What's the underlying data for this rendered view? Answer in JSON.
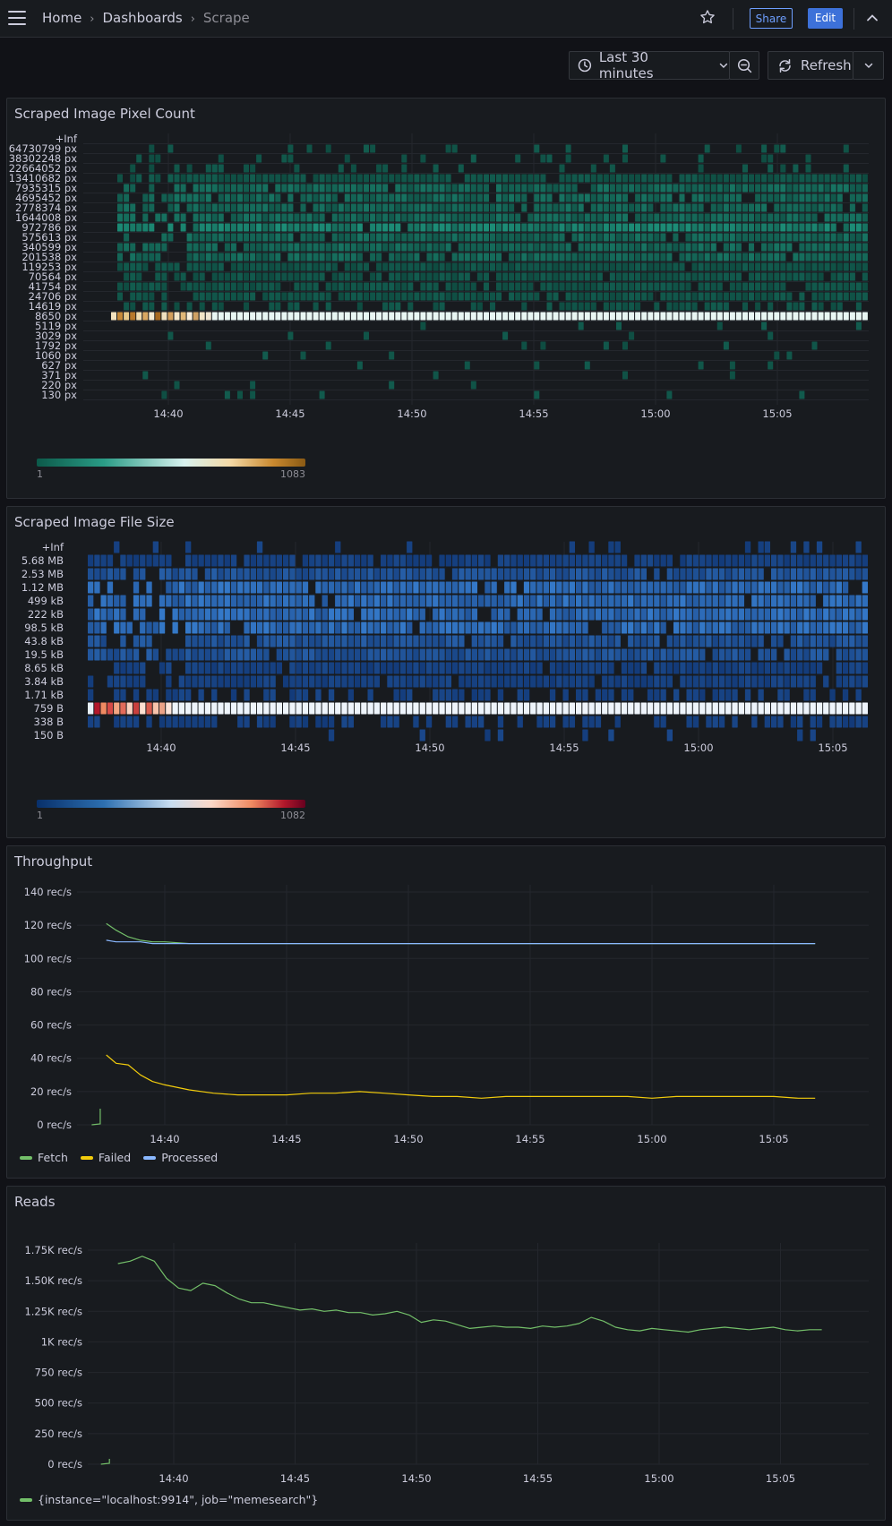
{
  "breadcrumb": {
    "home": "Home",
    "dashboards": "Dashboards",
    "current": "Scrape"
  },
  "header": {
    "share_label": "Share",
    "edit_label": "Edit"
  },
  "toolbar": {
    "time_range": "Last 30 minutes",
    "refresh_label": "Refresh"
  },
  "colors": {
    "accent": "#3d71d9",
    "fetch": "#73bf69",
    "failed": "#f2cc0c",
    "processed": "#8ab8ff"
  },
  "icons": [
    "menu-icon",
    "star-icon",
    "chevron-up-icon",
    "clock-icon",
    "chevron-down-icon",
    "zoom-out-icon",
    "refresh-icon"
  ],
  "time_ticks": [
    "14:40",
    "14:45",
    "14:50",
    "14:55",
    "15:00",
    "15:05"
  ],
  "panels": {
    "pixel_count": {
      "title": "Scraped Image Pixel Count",
      "scale_min": "1",
      "scale_max": "1083"
    },
    "file_size": {
      "title": "Scraped Image File Size",
      "scale_min": "1",
      "scale_max": "1082"
    },
    "throughput": {
      "title": "Throughput",
      "legend": [
        "Fetch",
        "Failed",
        "Processed"
      ]
    },
    "reads": {
      "title": "Reads",
      "legend": [
        "{instance=\"localhost:9914\", job=\"memesearch\"}"
      ]
    }
  },
  "chart_data": [
    {
      "type": "heatmap",
      "title": "Scraped Image Pixel Count",
      "x_ticks": [
        "14:40",
        "14:45",
        "14:50",
        "14:55",
        "15:00",
        "15:05"
      ],
      "y_buckets": [
        "+Inf",
        "64730799 px",
        "38302248 px",
        "22664052 px",
        "13410682 px",
        "7935315 px",
        "4695452 px",
        "2778374 px",
        "1644008 px",
        "972786 px",
        "575613 px",
        "340599 px",
        "201538 px",
        "119253 px",
        "70564 px",
        "41754 px",
        "24706 px",
        "14619 px",
        "8650 px",
        "5119 px",
        "3029 px",
        "1792 px",
        "1060 px",
        "627 px",
        "371 px",
        "220 px",
        "130 px"
      ],
      "color_scale": {
        "min": 1,
        "max": 1083
      },
      "dominant_bucket": "8650 px"
    },
    {
      "type": "heatmap",
      "title": "Scraped Image File Size",
      "x_ticks": [
        "14:40",
        "14:45",
        "14:50",
        "14:55",
        "15:00",
        "15:05"
      ],
      "y_buckets": [
        "+Inf",
        "5.68 MB",
        "2.53 MB",
        "1.12 MB",
        "499 kB",
        "222 kB",
        "98.5 kB",
        "43.8 kB",
        "19.5 kB",
        "8.65 kB",
        "3.84 kB",
        "1.71 kB",
        "759 B",
        "338 B",
        "150 B"
      ],
      "color_scale": {
        "min": 1,
        "max": 1082
      },
      "dominant_bucket": "759 B"
    },
    {
      "type": "line",
      "title": "Throughput",
      "x_ticks": [
        "14:40",
        "14:45",
        "14:50",
        "14:55",
        "15:00",
        "15:05"
      ],
      "y_ticks": [
        "140 rec/s",
        "120 rec/s",
        "100 rec/s",
        "80 rec/s",
        "60 rec/s",
        "40 rec/s",
        "20 rec/s",
        "0 rec/s"
      ],
      "ylim": [
        0,
        140
      ],
      "x_minutes": [
        37.6,
        38.0,
        38.5,
        39.0,
        39.5,
        40.0,
        41.0,
        42.0,
        43.0,
        44.0,
        45.0,
        46.0,
        47.0,
        48.0,
        49.0,
        50.0,
        51.0,
        52.0,
        53.0,
        54.0,
        55.0,
        56.0,
        57.0,
        58.0,
        59.0,
        60.0,
        61.0,
        62.0,
        63.0,
        64.0,
        65.0,
        66.0,
        66.7
      ],
      "series": [
        {
          "name": "Fetch",
          "values": [
            121,
            117,
            113,
            111,
            110,
            110,
            109,
            109,
            109,
            109,
            109,
            109,
            109,
            109,
            109,
            109,
            109,
            109,
            109,
            109,
            109,
            109,
            109,
            109,
            109,
            109,
            109,
            109,
            109,
            109,
            109,
            109,
            109
          ]
        },
        {
          "name": "Failed",
          "values": [
            42,
            37,
            36,
            30,
            26,
            24,
            21,
            19,
            18,
            18,
            18,
            19,
            19,
            20,
            19,
            18,
            17,
            17,
            16,
            17,
            17,
            17,
            17,
            17,
            17,
            16,
            17,
            17,
            17,
            17,
            17,
            16,
            16
          ]
        },
        {
          "name": "Processed",
          "values": [
            111,
            110,
            110,
            110,
            109,
            109,
            109,
            109,
            109,
            109,
            109,
            109,
            109,
            109,
            109,
            109,
            109,
            109,
            109,
            109,
            109,
            109,
            109,
            109,
            109,
            109,
            109,
            109,
            109,
            109,
            109,
            109,
            109
          ]
        }
      ]
    },
    {
      "type": "line",
      "title": "Reads",
      "x_ticks": [
        "14:40",
        "14:45",
        "14:50",
        "14:55",
        "15:00",
        "15:05"
      ],
      "y_ticks": [
        "1.75K rec/s",
        "1.50K rec/s",
        "1.25K rec/s",
        "1K rec/s",
        "750 rec/s",
        "500 rec/s",
        "250 rec/s",
        "0 rec/s"
      ],
      "ylim": [
        0,
        1800
      ],
      "x_minutes": [
        37.7,
        38.2,
        38.7,
        39.2,
        39.7,
        40.2,
        40.7,
        41.2,
        41.7,
        42.2,
        42.7,
        43.2,
        43.7,
        44.2,
        44.7,
        45.2,
        45.7,
        46.2,
        46.7,
        47.2,
        47.7,
        48.2,
        48.7,
        49.2,
        49.7,
        50.2,
        50.7,
        51.2,
        51.7,
        52.2,
        52.7,
        53.2,
        53.7,
        54.2,
        54.7,
        55.2,
        55.7,
        56.2,
        56.7,
        57.2,
        57.7,
        58.2,
        58.7,
        59.2,
        59.7,
        60.2,
        60.7,
        61.2,
        61.7,
        62.2,
        62.7,
        63.2,
        63.7,
        64.2,
        64.7,
        65.2,
        65.7,
        66.2,
        66.7
      ],
      "series": [
        {
          "name": "{instance=\"localhost:9914\", job=\"memesearch\"}",
          "values": [
            1640,
            1660,
            1700,
            1660,
            1520,
            1440,
            1420,
            1480,
            1460,
            1400,
            1350,
            1320,
            1320,
            1300,
            1280,
            1260,
            1270,
            1250,
            1260,
            1240,
            1240,
            1220,
            1230,
            1250,
            1220,
            1160,
            1180,
            1170,
            1140,
            1110,
            1120,
            1130,
            1120,
            1120,
            1110,
            1130,
            1120,
            1130,
            1150,
            1200,
            1170,
            1120,
            1100,
            1090,
            1110,
            1100,
            1090,
            1080,
            1100,
            1110,
            1120,
            1110,
            1100,
            1110,
            1120,
            1100,
            1090,
            1100,
            1100
          ]
        }
      ]
    }
  ]
}
